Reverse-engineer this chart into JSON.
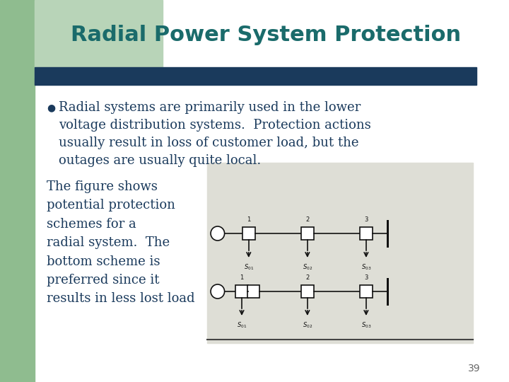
{
  "title": "Radial Power System Protection",
  "title_color": "#1a6b6b",
  "title_fontsize": 22,
  "bg_color": "#ffffff",
  "left_bar_color": "#8fbc8f",
  "top_green_color": "#b8d4b8",
  "header_bar_color": "#1a3a5c",
  "bullet_text_1": "Radial systems are primarily used in the lower\nvoltage distribution systems.  Protection actions\nusually result in loss of customer load, but the\noutages are usually quite local.",
  "body_text": "The figure shows\npotential protection\nschemes for a\nradial system.  The\nbottom scheme is\npreferred since it\nresults in less lost load",
  "text_color": "#1a3a5c",
  "body_fontsize": 13,
  "bullet_fontsize": 13,
  "page_number": "39",
  "diagram_bg": "#deded6"
}
